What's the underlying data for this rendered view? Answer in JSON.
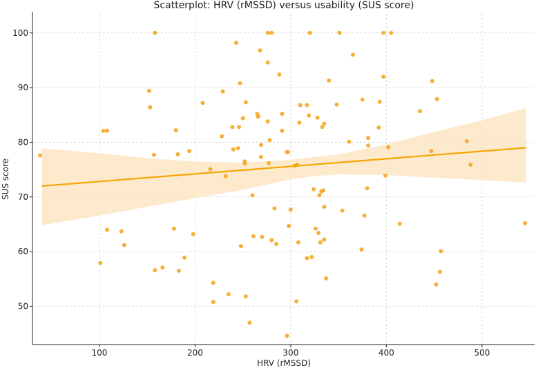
{
  "chart_data": {
    "type": "scatter",
    "title": "Scatterplot: HRV (rMSSD) versus usability (SUS score)",
    "xlabel": "HRV (rMSSD)",
    "ylabel": "SUS score",
    "xlim": [
      30,
      555
    ],
    "ylim": [
      43,
      103.5
    ],
    "xticks": [
      100,
      200,
      300,
      400,
      500
    ],
    "yticks": [
      50,
      60,
      70,
      80,
      90,
      100
    ],
    "grid": true,
    "colors": {
      "points": "#f5a623",
      "line": "#f5a500",
      "band": "#fde6c4",
      "grid": "#d0d0d0"
    },
    "regression": {
      "x_start": 40,
      "x_end": 546,
      "y_start": 72.0,
      "y_end": 79.0,
      "ci_lower": [
        [
          40,
          64.8
        ],
        [
          100,
          66.6
        ],
        [
          150,
          68.2
        ],
        [
          200,
          69.8
        ],
        [
          250,
          71.3
        ],
        [
          300,
          73.2
        ],
        [
          325,
          73.8
        ],
        [
          350,
          74.1
        ],
        [
          400,
          74.0
        ],
        [
          450,
          73.5
        ],
        [
          500,
          73.1
        ],
        [
          546,
          72.6
        ]
      ],
      "ci_upper": [
        [
          40,
          78.9
        ],
        [
          100,
          78.0
        ],
        [
          150,
          77.1
        ],
        [
          200,
          76.5
        ],
        [
          250,
          76.3
        ],
        [
          300,
          76.8
        ],
        [
          350,
          77.8
        ],
        [
          400,
          79.6
        ],
        [
          450,
          81.9
        ],
        [
          500,
          84.0
        ],
        [
          546,
          86.3
        ]
      ]
    },
    "points": [
      [
        38,
        77.6
      ],
      [
        101,
        57.9
      ],
      [
        104,
        82.1
      ],
      [
        108,
        82.1
      ],
      [
        108,
        64.0
      ],
      [
        123,
        63.7
      ],
      [
        126,
        61.2
      ],
      [
        152,
        89.4
      ],
      [
        153,
        86.4
      ],
      [
        158,
        100
      ],
      [
        157,
        77.7
      ],
      [
        158,
        56.6
      ],
      [
        166,
        57.1
      ],
      [
        178,
        64.2
      ],
      [
        180,
        82.2
      ],
      [
        182,
        77.8
      ],
      [
        183,
        56.5
      ],
      [
        189,
        58.9
      ],
      [
        194,
        78.4
      ],
      [
        198,
        63.2
      ],
      [
        208,
        87.2
      ],
      [
        216,
        75.1
      ],
      [
        219,
        54.3
      ],
      [
        219,
        50.8
      ],
      [
        228,
        81.1
      ],
      [
        229,
        89.3
      ],
      [
        232,
        73.8
      ],
      [
        235,
        52.2
      ],
      [
        239,
        82.8
      ],
      [
        240,
        78.7
      ],
      [
        243,
        98.2
      ],
      [
        245,
        78.9
      ],
      [
        246,
        82.8
      ],
      [
        247,
        90.8
      ],
      [
        248,
        61.0
      ],
      [
        250,
        84.4
      ],
      [
        252,
        76.5
      ],
      [
        252,
        76.1
      ],
      [
        253,
        87.3
      ],
      [
        253,
        51.8
      ],
      [
        257,
        47.0
      ],
      [
        260,
        70.3
      ],
      [
        261,
        62.8
      ],
      [
        265,
        85.2
      ],
      [
        266,
        84.7
      ],
      [
        268,
        96.8
      ],
      [
        269,
        79.5
      ],
      [
        269,
        77.3
      ],
      [
        270,
        62.7
      ],
      [
        276,
        100
      ],
      [
        276,
        94.6
      ],
      [
        276,
        83.8
      ],
      [
        277,
        76.2
      ],
      [
        278,
        80.4
      ],
      [
        280,
        100
      ],
      [
        280,
        62.1
      ],
      [
        283,
        67.9
      ],
      [
        285,
        61.4
      ],
      [
        288,
        92.4
      ],
      [
        291,
        85.2
      ],
      [
        291,
        82.1
      ],
      [
        296,
        78.2
      ],
      [
        297,
        78.2
      ],
      [
        296,
        44.6
      ],
      [
        298,
        64.7
      ],
      [
        300,
        67.7
      ],
      [
        304,
        75.7
      ],
      [
        306,
        50.9
      ],
      [
        307,
        75.9
      ],
      [
        308,
        61.7
      ],
      [
        309,
        83.6
      ],
      [
        310,
        86.8
      ],
      [
        317,
        86.8
      ],
      [
        317,
        58.8
      ],
      [
        319,
        84.9
      ],
      [
        320,
        100
      ],
      [
        322,
        59.0
      ],
      [
        324,
        71.4
      ],
      [
        326,
        64.2
      ],
      [
        328,
        84.5
      ],
      [
        329,
        63.4
      ],
      [
        330,
        70.3
      ],
      [
        332,
        71.0
      ],
      [
        331,
        61.7
      ],
      [
        333,
        82.8
      ],
      [
        334,
        71.2
      ],
      [
        335,
        83.4
      ],
      [
        335,
        68.2
      ],
      [
        335,
        62.2
      ],
      [
        337,
        55.1
      ],
      [
        340,
        91.3
      ],
      [
        348,
        86.9
      ],
      [
        351,
        100
      ],
      [
        354,
        67.5
      ],
      [
        361,
        80.1
      ],
      [
        365,
        96.0
      ],
      [
        374,
        60.4
      ],
      [
        375,
        87.8
      ],
      [
        377,
        66.6
      ],
      [
        380,
        71.6
      ],
      [
        381,
        80.8
      ],
      [
        381,
        79.4
      ],
      [
        392,
        82.7
      ],
      [
        393,
        87.4
      ],
      [
        397,
        92.0
      ],
      [
        397,
        100
      ],
      [
        399,
        73.9
      ],
      [
        402,
        79.1
      ],
      [
        405,
        100
      ],
      [
        414,
        65.1
      ],
      [
        435,
        85.7
      ],
      [
        447,
        78.4
      ],
      [
        448,
        91.2
      ],
      [
        452,
        54.0
      ],
      [
        453,
        87.9
      ],
      [
        456,
        56.3
      ],
      [
        457,
        60.1
      ],
      [
        484,
        80.2
      ],
      [
        488,
        75.9
      ],
      [
        545,
        65.2
      ]
    ]
  }
}
